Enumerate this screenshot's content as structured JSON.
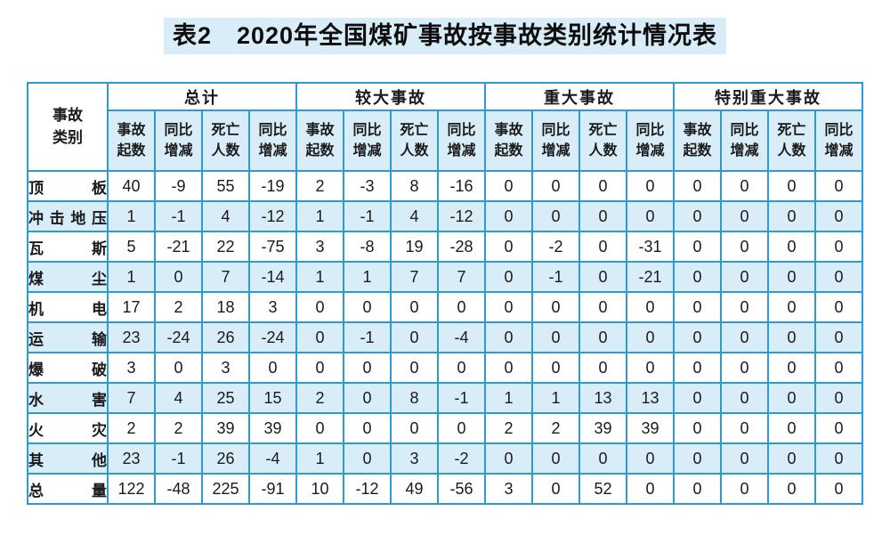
{
  "title": "表2　2020年全国煤矿事故按事故类别统计情况表",
  "accents": {
    "border_blue": "#2e9ad2",
    "cell_blue": "#d9edf8",
    "title_highlight": "#d9edf8",
    "text": "#1a1a1a"
  },
  "table": {
    "category_header": "事故\n类别",
    "groups": [
      {
        "label": "总计"
      },
      {
        "label": "较大事故"
      },
      {
        "label": "重大事故"
      },
      {
        "label": "特别重大事故"
      }
    ],
    "subheaders": [
      "事故\n起数",
      "同比\n增减",
      "死亡\n人数",
      "同比\n增减"
    ],
    "rows": [
      {
        "category": "顶板",
        "values": [
          40,
          -9,
          55,
          -19,
          2,
          -3,
          8,
          -16,
          0,
          0,
          0,
          0,
          0,
          0,
          0,
          0
        ]
      },
      {
        "category": "冲击地压",
        "values": [
          1,
          -1,
          4,
          -12,
          1,
          -1,
          4,
          -12,
          0,
          0,
          0,
          0,
          0,
          0,
          0,
          0
        ]
      },
      {
        "category": "瓦斯",
        "values": [
          5,
          -21,
          22,
          -75,
          3,
          -8,
          19,
          -28,
          0,
          -2,
          0,
          -31,
          0,
          0,
          0,
          0
        ]
      },
      {
        "category": "煤尘",
        "values": [
          1,
          0,
          7,
          -14,
          1,
          1,
          7,
          7,
          0,
          -1,
          0,
          -21,
          0,
          0,
          0,
          0
        ]
      },
      {
        "category": "机电",
        "values": [
          17,
          2,
          18,
          3,
          0,
          0,
          0,
          0,
          0,
          0,
          0,
          0,
          0,
          0,
          0,
          0
        ]
      },
      {
        "category": "运输",
        "values": [
          23,
          -24,
          26,
          -24,
          0,
          -1,
          0,
          -4,
          0,
          0,
          0,
          0,
          0,
          0,
          0,
          0
        ]
      },
      {
        "category": "爆破",
        "values": [
          3,
          0,
          3,
          0,
          0,
          0,
          0,
          0,
          0,
          0,
          0,
          0,
          0,
          0,
          0,
          0
        ]
      },
      {
        "category": "水害",
        "values": [
          7,
          4,
          25,
          15,
          2,
          0,
          8,
          -1,
          1,
          1,
          13,
          13,
          0,
          0,
          0,
          0
        ]
      },
      {
        "category": "火灾",
        "values": [
          2,
          2,
          39,
          39,
          0,
          0,
          0,
          0,
          2,
          2,
          39,
          39,
          0,
          0,
          0,
          0
        ]
      },
      {
        "category": "其他",
        "values": [
          23,
          -1,
          26,
          -4,
          1,
          0,
          3,
          -2,
          0,
          0,
          0,
          0,
          0,
          0,
          0,
          0
        ]
      },
      {
        "category": "总量",
        "values": [
          122,
          -48,
          225,
          -91,
          10,
          -12,
          49,
          -56,
          3,
          0,
          52,
          0,
          0,
          0,
          0,
          0
        ]
      }
    ]
  }
}
